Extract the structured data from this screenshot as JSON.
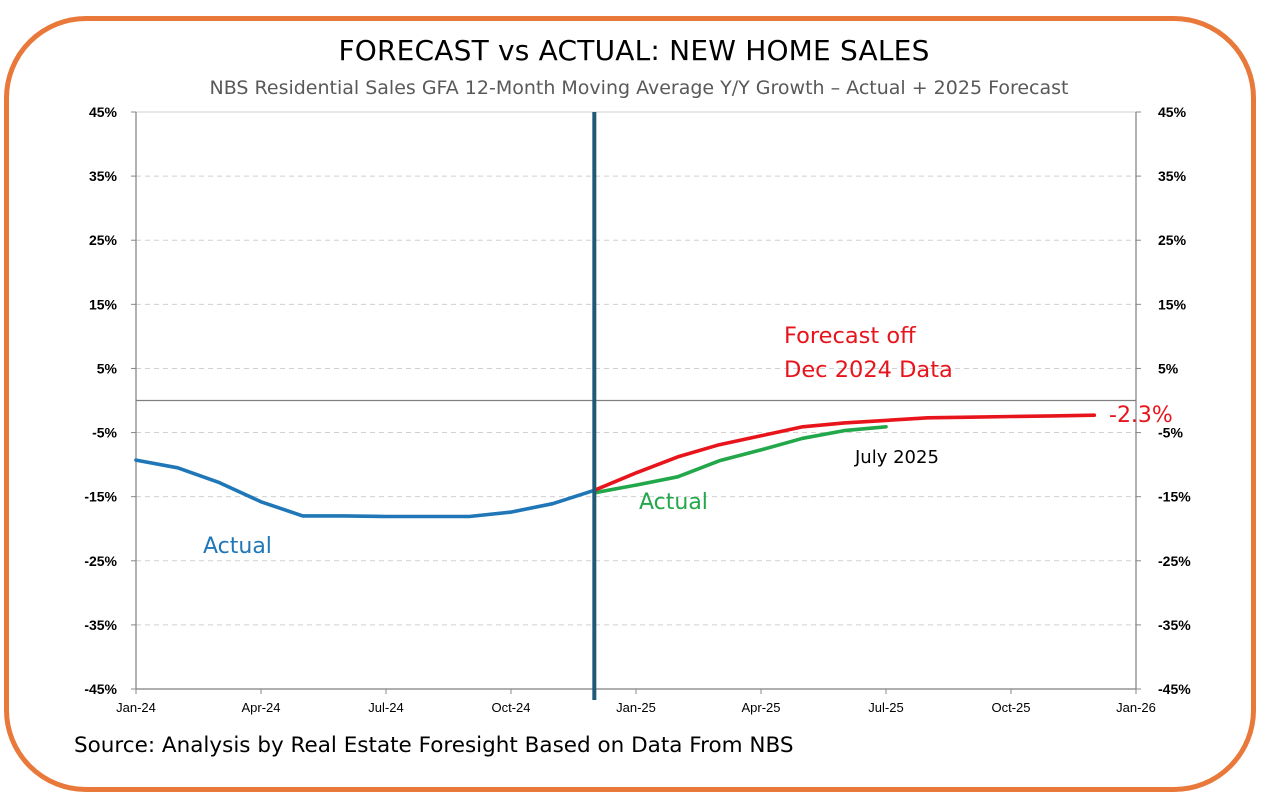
{
  "title": "FORECAST vs ACTUAL: NEW HOME SALES",
  "subtitle": "NBS Residential Sales GFA 12-Month Moving Average Y/Y Growth – Actual + 2025 Forecast",
  "source": "Source: Analysis by Real Estate Foresight Based on Data From NBS",
  "colors": {
    "frame": "#E8793A",
    "actual_2024": "#1F77B8",
    "actual_2025": "#22A84A",
    "forecast": "#E8141C",
    "divider": "#1E5A78"
  },
  "chart_data": {
    "type": "line",
    "ylim": [
      -45,
      45
    ],
    "xlim": [
      "Jan-24",
      "Jan-26"
    ],
    "y_ticks": [
      "45%",
      "35%",
      "25%",
      "15%",
      "5%",
      "-5%",
      "-15%",
      "-25%",
      "-35%",
      "-45%"
    ],
    "y_tick_values": [
      45,
      35,
      25,
      15,
      5,
      -5,
      -15,
      -25,
      -35,
      -45
    ],
    "x_ticks": [
      "Jan-24",
      "Apr-24",
      "Jul-24",
      "Oct-24",
      "Jan-25",
      "Apr-25",
      "Jul-25",
      "Oct-25",
      "Jan-26"
    ],
    "grid": true,
    "secondary_y_axis": true,
    "divider_at": "Dec-24",
    "series": [
      {
        "key": "actual_2024",
        "name": "Actual",
        "x": [
          "Jan-24",
          "Feb-24",
          "Mar-24",
          "Apr-24",
          "May-24",
          "Jun-24",
          "Jul-24",
          "Aug-24",
          "Sep-24",
          "Oct-24",
          "Nov-24",
          "Dec-24"
        ],
        "values": [
          -9.3,
          -10.5,
          -12.8,
          -15.8,
          -18.0,
          -18.0,
          -18.1,
          -18.1,
          -18.1,
          -17.4,
          -16.1,
          -14.0
        ]
      },
      {
        "key": "actual_2025",
        "name": "Actual",
        "x": [
          "Dec-24",
          "Jan-25",
          "Feb-25",
          "Mar-25",
          "Apr-25",
          "May-25",
          "Jun-25",
          "Jul-25"
        ],
        "values": [
          -14.4,
          -13.2,
          -11.9,
          -9.4,
          -7.7,
          -5.9,
          -4.7,
          -4.1
        ]
      },
      {
        "key": "forecast",
        "name": "Forecast off Dec 2024 Data",
        "x": [
          "Dec-24",
          "Jan-25",
          "Feb-25",
          "Mar-25",
          "Apr-25",
          "May-25",
          "Jun-25",
          "Jul-25",
          "Aug-25",
          "Sep-25",
          "Oct-25",
          "Nov-25",
          "Dec-25"
        ],
        "values": [
          -14.0,
          -11.3,
          -8.8,
          -6.9,
          -5.5,
          -4.1,
          -3.5,
          -3.1,
          -2.7,
          -2.6,
          -2.5,
          -2.4,
          -2.3
        ]
      }
    ],
    "annotations": {
      "actual_2024_label": "Actual",
      "actual_2025_label": "Actual",
      "forecast_label_line1": "Forecast off",
      "forecast_label_line2": "Dec 2024 Data",
      "forecast_end_value": "-2.3%",
      "latest_actual": "July 2025"
    }
  }
}
